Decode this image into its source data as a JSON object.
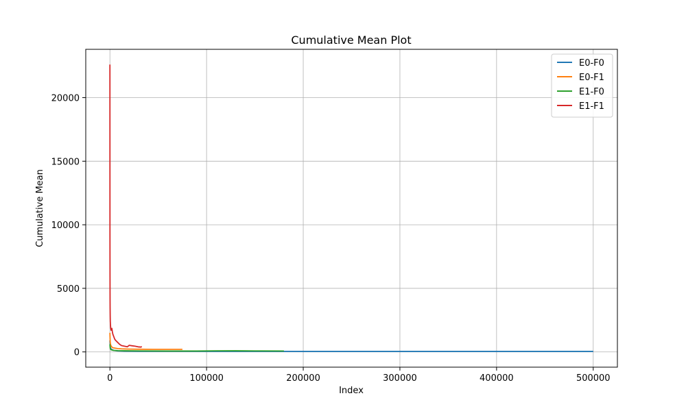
{
  "chart_data": {
    "type": "line",
    "title": "Cumulative Mean Plot",
    "xlabel": "Index",
    "ylabel": "Cumulative Mean",
    "xlim": [
      -25000,
      525000
    ],
    "ylim": [
      -1200,
      23800
    ],
    "xticks": [
      0,
      100000,
      200000,
      300000,
      400000,
      500000
    ],
    "yticks": [
      0,
      5000,
      10000,
      15000,
      20000
    ],
    "grid": true,
    "legend_placement": "top-right",
    "series": [
      {
        "name": "E0-F0",
        "color": "#1f77b4",
        "x": [
          0,
          100,
          300,
          600,
          1000,
          2000,
          4000,
          8000,
          15000,
          30000,
          60000,
          100000,
          150000,
          200000,
          300000,
          400000,
          500000
        ],
        "y": [
          900,
          700,
          450,
          320,
          250,
          180,
          120,
          80,
          60,
          50,
          45,
          40,
          38,
          37,
          36,
          35,
          35
        ]
      },
      {
        "name": "E0-F1",
        "color": "#ff7f0e",
        "x": [
          0,
          100,
          300,
          600,
          1000,
          2000,
          3000,
          5000,
          8000,
          12000,
          20000,
          30000,
          45000,
          60000,
          75000
        ],
        "y": [
          1500,
          1200,
          800,
          600,
          500,
          380,
          330,
          300,
          260,
          240,
          220,
          210,
          200,
          200,
          200
        ]
      },
      {
        "name": "E1-F0",
        "color": "#2ca02c",
        "x": [
          0,
          100,
          300,
          600,
          1000,
          2000,
          4000,
          8000,
          15000,
          30000,
          60000,
          90000,
          110000,
          130000,
          150000,
          180000
        ],
        "y": [
          600,
          450,
          300,
          220,
          180,
          150,
          120,
          100,
          90,
          80,
          70,
          70,
          85,
          90,
          80,
          75
        ]
      },
      {
        "name": "E1-F1",
        "color": "#d62728",
        "x": [
          0,
          50,
          100,
          150,
          200,
          300,
          400,
          600,
          800,
          1000,
          1300,
          1600,
          2000,
          2500,
          3000,
          3500,
          4000,
          5000,
          6000,
          8000,
          10000,
          12000,
          15000,
          18000,
          20000,
          23000,
          26000,
          29000,
          32000,
          33000
        ],
        "y": [
          22600,
          9000,
          5900,
          4200,
          3500,
          2800,
          2400,
          2100,
          1900,
          1800,
          1700,
          1750,
          1850,
          1600,
          1400,
          1300,
          1200,
          1000,
          900,
          750,
          600,
          500,
          450,
          400,
          520,
          480,
          450,
          400,
          380,
          420
        ]
      }
    ]
  }
}
